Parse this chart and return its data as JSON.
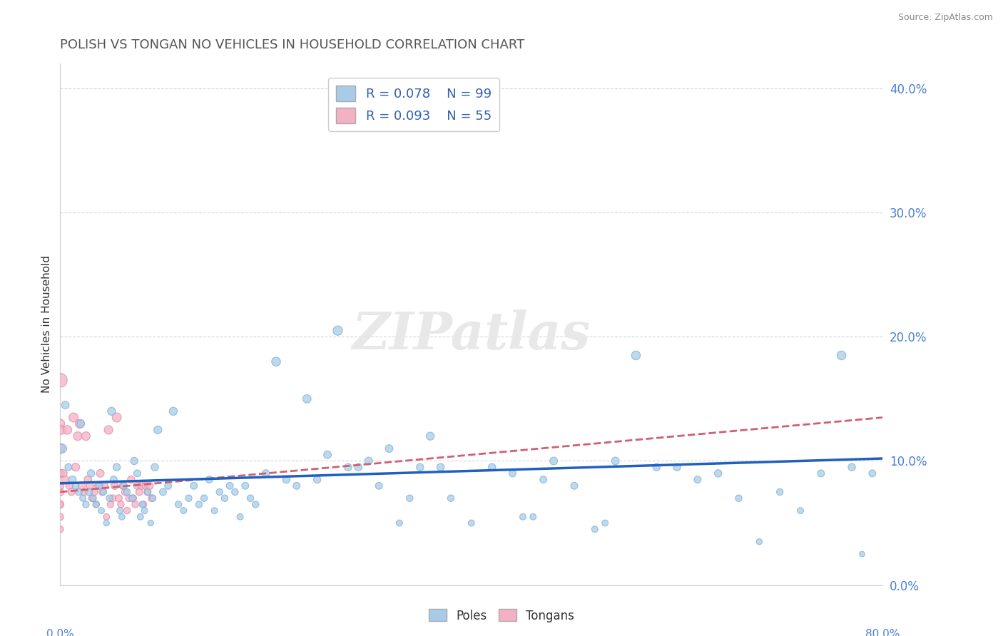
{
  "title": "POLISH VS TONGAN NO VEHICLES IN HOUSEHOLD CORRELATION CHART",
  "source": "Source: ZipAtlas.com",
  "ylabel": "No Vehicles in Household",
  "poles_R": "R = 0.078",
  "poles_N": "N = 99",
  "tongans_R": "R = 0.093",
  "tongans_N": "N = 55",
  "poles_color": "#a8cce8",
  "poles_edge": "#7aafd4",
  "tongans_color": "#f4b0c4",
  "tongans_edge": "#e088a0",
  "trendline_poles_color": "#2060c0",
  "trendline_tongans_color": "#d06070",
  "poles_scatter_x": [
    0.2,
    0.5,
    0.8,
    1.2,
    1.5,
    1.8,
    2.0,
    2.2,
    2.5,
    2.8,
    3.0,
    3.2,
    3.5,
    3.8,
    4.0,
    4.2,
    4.5,
    4.8,
    5.0,
    5.2,
    5.5,
    5.8,
    6.0,
    6.2,
    6.5,
    7.0,
    7.2,
    7.5,
    7.8,
    8.0,
    8.2,
    8.5,
    8.8,
    9.0,
    9.2,
    9.5,
    10.0,
    10.5,
    11.0,
    11.5,
    12.0,
    12.5,
    13.0,
    13.5,
    14.0,
    14.5,
    15.0,
    15.5,
    16.0,
    16.5,
    17.0,
    17.5,
    18.0,
    18.5,
    19.0,
    20.0,
    21.0,
    22.0,
    23.0,
    24.0,
    25.0,
    26.0,
    27.0,
    28.0,
    29.0,
    30.0,
    31.0,
    32.0,
    33.0,
    34.0,
    35.0,
    36.0,
    37.0,
    38.0,
    40.0,
    42.0,
    44.0,
    45.0,
    46.0,
    47.0,
    48.0,
    50.0,
    52.0,
    53.0,
    54.0,
    56.0,
    58.0,
    60.0,
    62.0,
    64.0,
    66.0,
    68.0,
    70.0,
    72.0,
    74.0,
    76.0,
    77.0,
    78.0,
    79.0
  ],
  "poles_scatter_y": [
    11.0,
    14.5,
    9.5,
    8.5,
    8.0,
    7.5,
    13.0,
    7.0,
    6.5,
    7.5,
    9.0,
    7.0,
    6.5,
    8.0,
    6.0,
    7.5,
    5.0,
    7.0,
    14.0,
    8.5,
    9.5,
    6.0,
    5.5,
    8.0,
    7.5,
    7.0,
    10.0,
    9.0,
    5.5,
    6.5,
    6.0,
    7.5,
    5.0,
    7.0,
    9.5,
    12.5,
    7.5,
    8.0,
    14.0,
    6.5,
    6.0,
    7.0,
    8.0,
    6.5,
    7.0,
    8.5,
    6.0,
    7.5,
    7.0,
    8.0,
    7.5,
    5.5,
    8.0,
    7.0,
    6.5,
    9.0,
    18.0,
    8.5,
    8.0,
    15.0,
    8.5,
    10.5,
    20.5,
    9.5,
    9.5,
    10.0,
    8.0,
    11.0,
    5.0,
    7.0,
    9.5,
    12.0,
    9.5,
    7.0,
    5.0,
    9.5,
    9.0,
    5.5,
    5.5,
    8.5,
    10.0,
    8.0,
    4.5,
    5.0,
    10.0,
    18.5,
    9.5,
    9.5,
    8.5,
    9.0,
    7.0,
    3.5,
    7.5,
    6.0,
    9.0,
    18.5,
    9.5,
    2.5,
    9.0
  ],
  "poles_scatter_s": [
    80,
    60,
    50,
    55,
    45,
    50,
    60,
    40,
    45,
    50,
    55,
    45,
    40,
    50,
    40,
    45,
    35,
    45,
    65,
    50,
    55,
    40,
    40,
    50,
    45,
    45,
    55,
    50,
    40,
    45,
    40,
    45,
    35,
    45,
    55,
    65,
    50,
    50,
    65,
    45,
    40,
    45,
    50,
    45,
    45,
    50,
    40,
    45,
    45,
    50,
    45,
    40,
    50,
    45,
    45,
    55,
    80,
    55,
    50,
    70,
    55,
    60,
    90,
    55,
    55,
    60,
    50,
    60,
    40,
    45,
    55,
    65,
    55,
    45,
    40,
    55,
    50,
    40,
    40,
    50,
    60,
    50,
    40,
    40,
    60,
    80,
    55,
    55,
    50,
    55,
    45,
    35,
    45,
    40,
    50,
    80,
    55,
    30,
    50
  ],
  "tongans_scatter_x": [
    0.0,
    0.0,
    0.0,
    0.0,
    0.0,
    0.0,
    0.0,
    0.0,
    0.0,
    0.0,
    0.1,
    0.3,
    0.5,
    0.7,
    0.9,
    1.1,
    1.3,
    1.5,
    1.7,
    1.9,
    2.1,
    2.3,
    2.5,
    2.7,
    2.9,
    3.1,
    3.3,
    3.5,
    3.7,
    3.9,
    4.1,
    4.3,
    4.5,
    4.7,
    4.9,
    5.1,
    5.3,
    5.5,
    5.7,
    5.9,
    6.1,
    6.3,
    6.5,
    6.7,
    6.9,
    7.1,
    7.3,
    7.5,
    7.7,
    7.9,
    8.1,
    8.3,
    8.5,
    8.7,
    8.9
  ],
  "tongans_scatter_y": [
    16.5,
    9.0,
    5.5,
    6.5,
    4.5,
    7.5,
    13.0,
    11.0,
    8.0,
    6.5,
    12.5,
    9.0,
    8.5,
    12.5,
    8.0,
    7.5,
    13.5,
    9.5,
    12.0,
    13.0,
    8.0,
    7.5,
    12.0,
    8.5,
    8.0,
    7.0,
    7.5,
    6.5,
    8.0,
    9.0,
    7.5,
    8.0,
    5.5,
    12.5,
    6.5,
    7.0,
    8.0,
    13.5,
    7.0,
    6.5,
    8.0,
    7.5,
    6.0,
    7.0,
    8.5,
    7.0,
    6.5,
    8.0,
    7.5,
    8.0,
    6.5,
    8.0,
    7.5,
    8.0,
    7.0
  ],
  "tongans_scatter_s": [
    200,
    70,
    50,
    55,
    45,
    60,
    80,
    100,
    60,
    55,
    80,
    60,
    55,
    80,
    55,
    50,
    85,
    65,
    75,
    80,
    55,
    50,
    75,
    60,
    55,
    50,
    50,
    45,
    55,
    60,
    50,
    55,
    40,
    75,
    45,
    50,
    55,
    85,
    50,
    45,
    55,
    50,
    45,
    50,
    55,
    50,
    45,
    55,
    50,
    55,
    45,
    55,
    50,
    55,
    50
  ],
  "trendline_poles": [
    8.2,
    10.2
  ],
  "trendline_tongans": [
    7.5,
    13.5
  ],
  "xlim": [
    0,
    80
  ],
  "ylim": [
    0,
    42
  ],
  "figsize": [
    14.06,
    8.92
  ],
  "dpi": 100
}
